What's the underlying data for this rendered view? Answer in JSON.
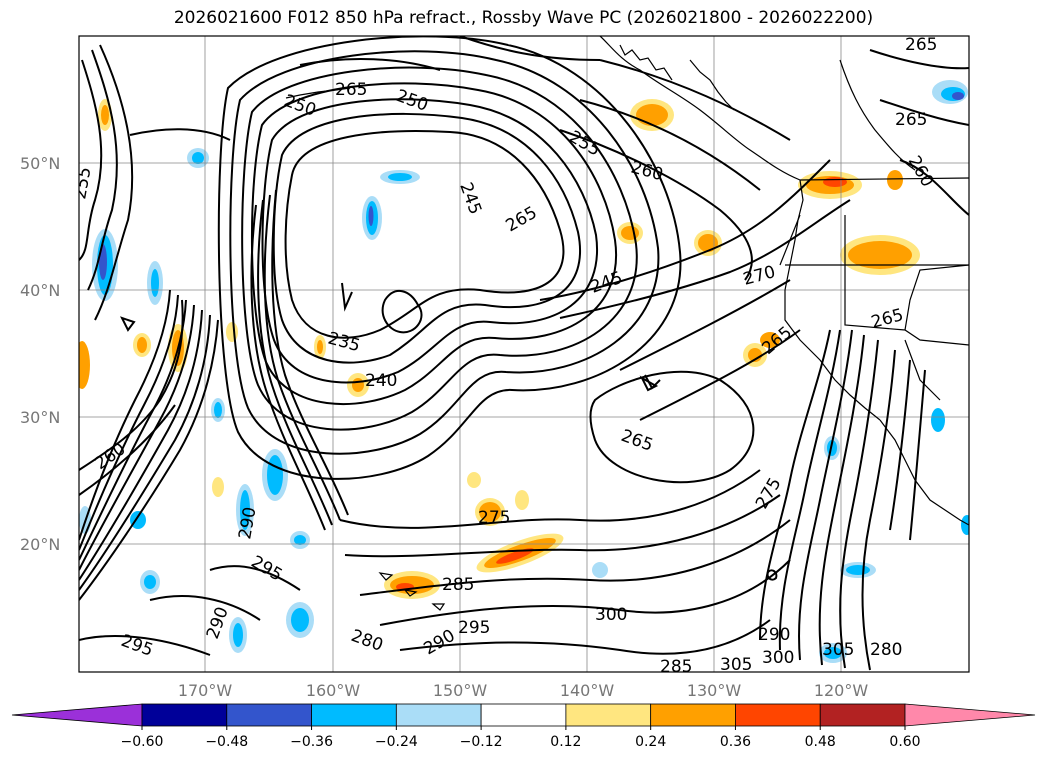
{
  "title": "2026021600 F012 850 hPa refract., Rossby Wave PC (2026021800 - 2026022200)",
  "map": {
    "lat_labels": [
      "50°N",
      "40°N",
      "30°N",
      "20°N"
    ],
    "lon_labels": [
      "170°W",
      "160°W",
      "150°W",
      "140°W",
      "130°W",
      "120°W"
    ],
    "contour_labels": [
      {
        "text": "255"
      },
      {
        "text": "250"
      },
      {
        "text": "265"
      },
      {
        "text": "260"
      },
      {
        "text": "255"
      },
      {
        "text": "245"
      },
      {
        "text": "265"
      },
      {
        "text": "235"
      },
      {
        "text": "240"
      },
      {
        "text": "245"
      },
      {
        "text": "270"
      },
      {
        "text": "265"
      },
      {
        "text": "265"
      },
      {
        "text": "265"
      },
      {
        "text": "260"
      },
      {
        "text": "275"
      },
      {
        "text": "285"
      },
      {
        "text": "300"
      },
      {
        "text": "295"
      },
      {
        "text": "290"
      },
      {
        "text": "295"
      },
      {
        "text": "290"
      },
      {
        "text": "280"
      },
      {
        "text": "305"
      },
      {
        "text": "305"
      },
      {
        "text": "280"
      },
      {
        "text": "275"
      },
      {
        "text": "265"
      },
      {
        "text": "260"
      },
      {
        "text": "265"
      },
      {
        "text": "290"
      },
      {
        "text": "290"
      },
      {
        "text": "295"
      },
      {
        "text": "300"
      },
      {
        "text": "285"
      },
      {
        "text": "250"
      }
    ]
  },
  "colorbar": {
    "labels": [
      "−0.60",
      "−0.48",
      "−0.36",
      "−0.24",
      "−0.12",
      "0.12",
      "0.24",
      "0.36",
      "0.48",
      "0.60"
    ],
    "colors": [
      "#9b30d9",
      "#000099",
      "#3355cc",
      "#00bbff",
      "#aaddf7",
      "#ffffff",
      "#ffe680",
      "#ffa000",
      "#ff4500",
      "#b22222",
      "#ff88aa"
    ]
  }
}
